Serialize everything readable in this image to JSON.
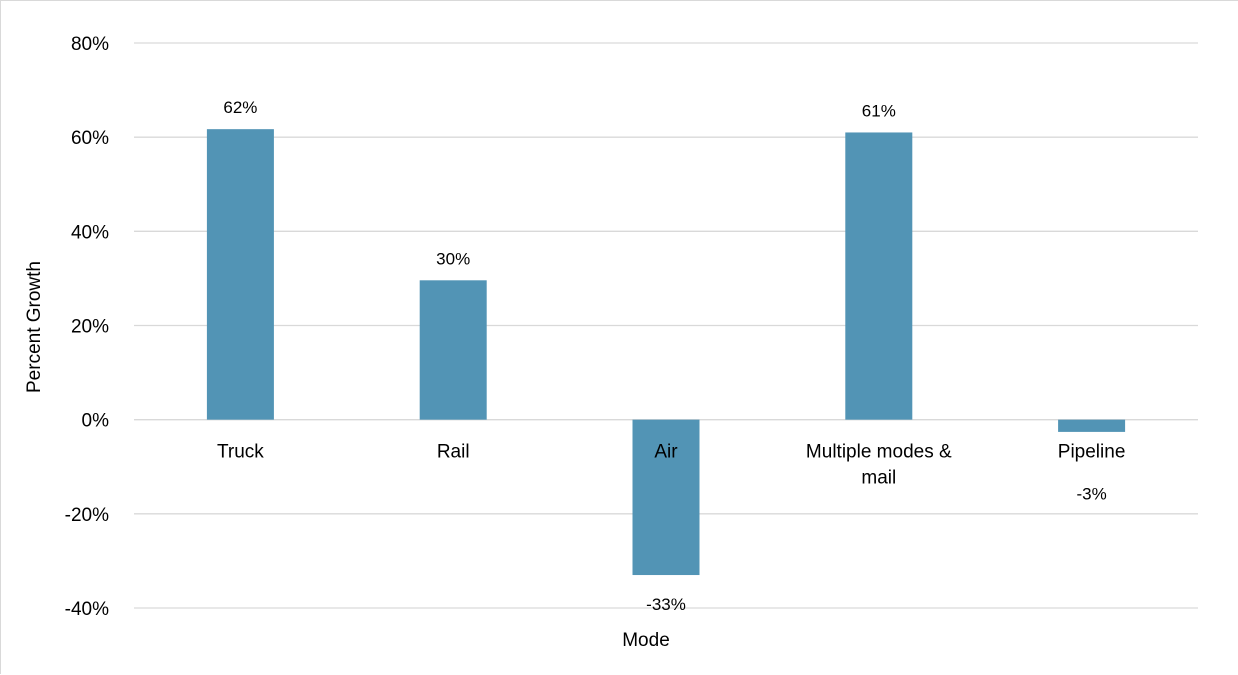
{
  "chart_data": {
    "type": "bar",
    "title": "",
    "xlabel": "Mode",
    "ylabel": "Percent Growth",
    "categories": [
      "Truck",
      "Rail",
      "Air",
      "Multiple modes & mail",
      "Pipeline"
    ],
    "category_lines": [
      [
        "Truck"
      ],
      [
        "Rail"
      ],
      [
        "Air"
      ],
      [
        "Multiple modes &",
        "mail"
      ],
      [
        "Pipeline"
      ]
    ],
    "values": [
      61.7,
      29.6,
      -33.0,
      61.0,
      -2.6
    ],
    "data_labels": [
      "62%",
      "30%",
      "-33%",
      "61%",
      "-3%"
    ],
    "ylim": [
      -40,
      80
    ],
    "yticks": [
      -40,
      -20,
      0,
      20,
      40,
      60,
      80
    ],
    "ytick_labels": [
      "-40%",
      "-20%",
      "0%",
      "20%",
      "40%",
      "60%",
      "80%"
    ],
    "grid": true,
    "legend": "none",
    "colors": {
      "bar": "#5294b5",
      "grid": "#d9d9d9",
      "text": "#000000"
    }
  }
}
